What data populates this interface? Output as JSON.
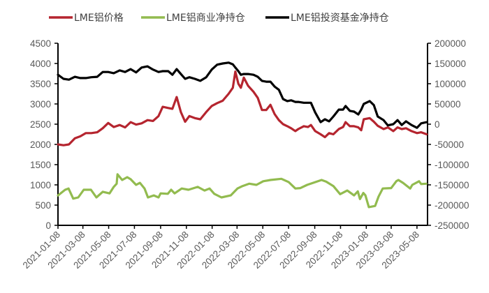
{
  "chart_data": {
    "type": "line",
    "title": "",
    "legend_position": "top",
    "x_origin_date": "2021-01-08",
    "x_unit": "days since 2021-01-08",
    "x_end_day": 875,
    "x_tick_labels": [
      "2021-01-08",
      "2021-03-08",
      "2021-05-08",
      "2021-07-08",
      "2021-09-08",
      "2021-11-08",
      "2022-01-08",
      "2022-03-08",
      "2022-05-08",
      "2022-07-08",
      "2022-09-08",
      "2022-11-08",
      "2023-01-08",
      "2023-03-08",
      "2023-05-08"
    ],
    "y_left": {
      "range": [
        0,
        4500
      ],
      "ticks": [
        "0",
        "500",
        "1000",
        "1500",
        "2000",
        "2500",
        "3000",
        "3500",
        "4000",
        "4500"
      ],
      "tick_values": [
        0,
        500,
        1000,
        1500,
        2000,
        2500,
        3000,
        3500,
        4000,
        4500
      ]
    },
    "y_right": {
      "range": [
        -250000,
        200000
      ],
      "ticks": [
        "-250000",
        "-200000",
        "-150000",
        "-100000",
        "-50000",
        "0",
        "50000",
        "100000",
        "150000",
        "200000"
      ],
      "tick_values": [
        -250000,
        -200000,
        -150000,
        -100000,
        -50000,
        0,
        50000,
        100000,
        150000,
        200000
      ]
    },
    "series": [
      {
        "name": "LME铝价格",
        "axis": "left",
        "color": "#b5252f",
        "x": [
          0,
          13,
          26,
          40,
          53,
          66,
          79,
          93,
          106,
          119,
          132,
          146,
          159,
          172,
          185,
          198,
          212,
          225,
          238,
          248,
          261,
          271,
          281,
          291,
          301,
          311,
          324,
          337,
          351,
          364,
          377,
          390,
          404,
          414,
          420,
          427,
          433,
          440,
          450,
          463,
          473,
          483,
          493,
          503,
          513,
          523,
          533,
          543,
          552,
          562,
          569,
          582,
          592,
          599,
          609,
          622,
          632,
          642,
          652,
          665,
          675,
          681,
          691,
          701,
          711,
          718,
          724,
          738,
          748,
          757,
          771,
          781,
          794,
          804,
          814,
          824,
          837,
          850,
          860,
          873
        ],
        "values": [
          2000,
          1980,
          2000,
          2150,
          2200,
          2280,
          2280,
          2300,
          2400,
          2530,
          2430,
          2480,
          2420,
          2550,
          2490,
          2520,
          2600,
          2580,
          2700,
          2930,
          2900,
          2880,
          3170,
          2800,
          2560,
          2700,
          2650,
          2620,
          2800,
          2950,
          3020,
          3080,
          3250,
          3400,
          3800,
          3500,
          3400,
          3650,
          3450,
          3300,
          3150,
          2850,
          2850,
          2980,
          2750,
          2600,
          2500,
          2450,
          2400,
          2330,
          2380,
          2450,
          2430,
          2480,
          2330,
          2250,
          2180,
          2280,
          2250,
          2380,
          2430,
          2550,
          2450,
          2450,
          2420,
          2350,
          2620,
          2650,
          2560,
          2460,
          2380,
          2420,
          2330,
          2420,
          2380,
          2400,
          2330,
          2280,
          2300,
          2250
        ]
      },
      {
        "name": "LME铝商业净持仓",
        "axis": "right",
        "color": "#92bb4f",
        "x": [
          0,
          17,
          25,
          36,
          48,
          61,
          78,
          91,
          106,
          122,
          132,
          139,
          141,
          152,
          164,
          172,
          185,
          194,
          205,
          213,
          227,
          238,
          243,
          260,
          268,
          276,
          293,
          309,
          331,
          347,
          359,
          370,
          387,
          409,
          425,
          437,
          453,
          470,
          486,
          503,
          529,
          546,
          562,
          574,
          590,
          607,
          624,
          635,
          652,
          668,
          685,
          701,
          710,
          715,
          723,
          728,
          736,
          751,
          759,
          769,
          789,
          801,
          806,
          817,
          834,
          839,
          855,
          860,
          872
        ],
        "values": [
          -176000,
          -162000,
          -159000,
          -184000,
          -181000,
          -162000,
          -162000,
          -181000,
          -167000,
          -171000,
          -155000,
          -147000,
          -124000,
          -138000,
          -131000,
          -136000,
          -150000,
          -145000,
          -159000,
          -181000,
          -176000,
          -181000,
          -171000,
          -172000,
          -162000,
          -171000,
          -159000,
          -162000,
          -155000,
          -164000,
          -159000,
          -172000,
          -181000,
          -176000,
          -159000,
          -153000,
          -147000,
          -150000,
          -141000,
          -138000,
          -135000,
          -143000,
          -159000,
          -158000,
          -150000,
          -144000,
          -138000,
          -142000,
          -153000,
          -173000,
          -164000,
          -176000,
          -166000,
          -185000,
          -170000,
          -176000,
          -205000,
          -202000,
          -179000,
          -159000,
          -158000,
          -141000,
          -138000,
          -145000,
          -159000,
          -150000,
          -141000,
          -148000,
          -147000
        ]
      },
      {
        "name": "LME铝投资基金净持仓",
        "axis": "right",
        "color": "#000000",
        "x": [
          0,
          13,
          26,
          40,
          53,
          66,
          79,
          93,
          106,
          119,
          132,
          146,
          159,
          172,
          185,
          198,
          212,
          225,
          238,
          248,
          261,
          271,
          281,
          291,
          301,
          311,
          324,
          337,
          351,
          364,
          377,
          390,
          404,
          414,
          420,
          427,
          433,
          440,
          450,
          463,
          473,
          483,
          493,
          503,
          513,
          523,
          533,
          543,
          552,
          562,
          569,
          582,
          592,
          599,
          609,
          622,
          632,
          642,
          652,
          665,
          675,
          681,
          691,
          701,
          711,
          718,
          724,
          738,
          748,
          757,
          771,
          781,
          794,
          804,
          814,
          824,
          837,
          850,
          860,
          873
        ],
        "values": [
          122000,
          112000,
          110000,
          117000,
          114000,
          114000,
          116000,
          117000,
          129000,
          129000,
          126000,
          133000,
          129000,
          136000,
          128000,
          140000,
          143000,
          135000,
          129000,
          131000,
          131000,
          122000,
          136000,
          124000,
          112000,
          116000,
          112000,
          107000,
          116000,
          135000,
          147000,
          150000,
          152000,
          148000,
          140000,
          131000,
          122000,
          124000,
          124000,
          122000,
          117000,
          107000,
          105000,
          105000,
          93000,
          85000,
          62000,
          57000,
          59000,
          55000,
          55000,
          53000,
          53000,
          53000,
          29000,
          5000,
          12000,
          7000,
          19000,
          36000,
          36000,
          45000,
          33000,
          31000,
          24000,
          36000,
          50000,
          57000,
          47000,
          19000,
          10000,
          -3000,
          0,
          10000,
          -2000,
          7000,
          -2000,
          -9000,
          2000,
          5000
        ]
      }
    ]
  }
}
